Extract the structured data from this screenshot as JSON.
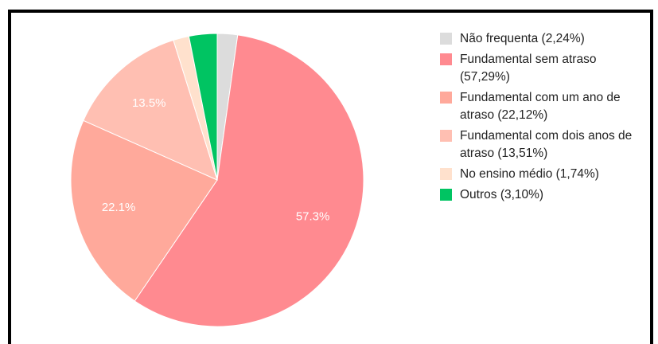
{
  "chart_data": {
    "type": "pie",
    "categories": [
      "Não frequenta (2,24%)",
      "Fundamental sem atraso (57,29%)",
      "Fundamental com um ano de atraso (22,12%)",
      "Fundamental com dois anos de atraso (13,51%)",
      "No ensino médio (1,74%)",
      "Outros (3,10%)"
    ],
    "values": [
      2.24,
      57.29,
      22.12,
      13.51,
      1.74,
      3.1
    ],
    "value_labels": [
      null,
      "57.3%",
      "22.1%",
      "13.5%",
      null,
      null
    ],
    "colors": [
      "#dcdcdc",
      "#ff8a90",
      "#ffa99b",
      "#ffbfb2",
      "#ffe1cd",
      "#00c462"
    ],
    "legend": "right"
  }
}
